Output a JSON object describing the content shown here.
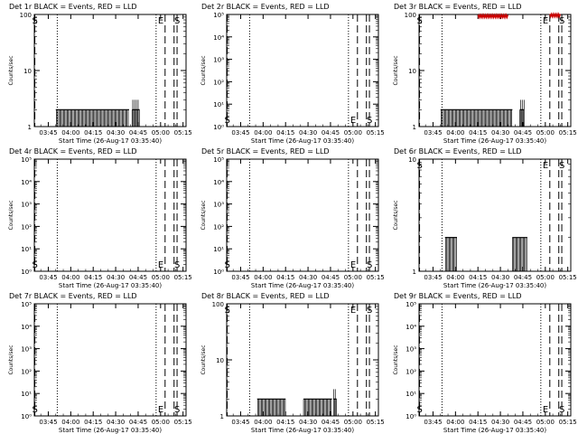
{
  "figure": {
    "xtick_labels": [
      "03:45",
      "04:00",
      "04:15",
      "04:30",
      "04:45",
      "05:00",
      "05:15"
    ],
    "xlabel": "Start Time (26-Aug-17 03:35:40)",
    "ylabel": "Counts/sec",
    "marker_s": "S",
    "marker_e": "E",
    "event_color": "#000000",
    "lld_color": "#cc0000"
  },
  "chart_data": [
    {
      "type": "bar",
      "title": "Det 1r BLACK = Events, RED = LLD",
      "yscale": "log",
      "ytick_labels": [
        "1",
        "10",
        "100"
      ],
      "ylim": [
        1,
        100
      ],
      "segments": [
        {
          "x_range": [
            "03:50",
            "04:39"
          ],
          "values": [
            1,
            2
          ]
        },
        {
          "x_range": [
            "04:41",
            "04:46"
          ],
          "values": [
            1,
            2,
            3
          ]
        }
      ],
      "lld": []
    },
    {
      "type": "bar",
      "title": "Det 2r BLACK = Events, RED = LLD",
      "yscale": "log",
      "ytick_labels": [
        "10⁰",
        "10¹",
        "10²",
        "10³",
        "10⁴",
        "10⁵"
      ],
      "ylim": [
        1,
        100000
      ],
      "segments": [],
      "lld": []
    },
    {
      "type": "bar",
      "title": "Det 3r BLACK = Events, RED = LLD",
      "yscale": "log",
      "ytick_labels": [
        "1",
        "10",
        "100"
      ],
      "ylim": [
        1,
        100
      ],
      "segments": [
        {
          "x_range": [
            "03:50",
            "04:38"
          ],
          "values": [
            1,
            2
          ]
        },
        {
          "x_range": [
            "04:43",
            "04:46"
          ],
          "values": [
            1,
            2,
            3
          ]
        }
      ],
      "lld": [
        {
          "x_range": [
            "04:15",
            "04:35"
          ],
          "value": 95
        },
        {
          "x_range": [
            "05:03",
            "05:10"
          ],
          "value": 98
        }
      ]
    },
    {
      "type": "bar",
      "title": "Det 4r BLACK = Events, RED = LLD",
      "yscale": "log",
      "ytick_labels": [
        "10⁰",
        "10¹",
        "10²",
        "10³",
        "10⁴",
        "10⁵"
      ],
      "ylim": [
        1,
        100000
      ],
      "segments": [],
      "lld": []
    },
    {
      "type": "bar",
      "title": "Det 5r BLACK = Events, RED = LLD",
      "yscale": "log",
      "ytick_labels": [
        "10⁰",
        "10¹",
        "10²",
        "10³",
        "10⁴",
        "10⁵"
      ],
      "ylim": [
        1,
        100000
      ],
      "segments": [],
      "lld": []
    },
    {
      "type": "bar",
      "title": "Det 6r BLACK = Events, RED = LLD",
      "yscale": "log",
      "ytick_labels": [
        "1",
        "10"
      ],
      "ylim": [
        1,
        10
      ],
      "segments": [
        {
          "x_range": [
            "03:53",
            "04:01"
          ],
          "values": [
            1,
            2
          ]
        },
        {
          "x_range": [
            "04:38",
            "04:48"
          ],
          "values": [
            1,
            2
          ]
        }
      ],
      "lld": []
    },
    {
      "type": "bar",
      "title": "Det 7r BLACK = Events, RED = LLD",
      "yscale": "log",
      "ytick_labels": [
        "10⁰",
        "10¹",
        "10²",
        "10³",
        "10⁴",
        "10⁵"
      ],
      "ylim": [
        1,
        100000
      ],
      "segments": [],
      "lld": []
    },
    {
      "type": "bar",
      "title": "Det 8r BLACK = Events, RED = LLD",
      "yscale": "log",
      "ytick_labels": [
        "1",
        "10",
        "100"
      ],
      "ylim": [
        1,
        100
      ],
      "segments": [
        {
          "x_range": [
            "03:56",
            "04:15"
          ],
          "values": [
            1,
            2
          ]
        },
        {
          "x_range": [
            "04:27",
            "04:46"
          ],
          "values": [
            1,
            2
          ]
        },
        {
          "x_range": [
            "04:47",
            "04:49"
          ],
          "values": [
            1,
            2,
            3
          ]
        }
      ],
      "lld": []
    },
    {
      "type": "bar",
      "title": "Det 9r BLACK = Events, RED = LLD",
      "yscale": "log",
      "ytick_labels": [
        "10⁰",
        "10¹",
        "10²",
        "10³",
        "10⁴",
        "10⁵"
      ],
      "ylim": [
        1,
        100000
      ],
      "segments": [],
      "lld": []
    }
  ]
}
